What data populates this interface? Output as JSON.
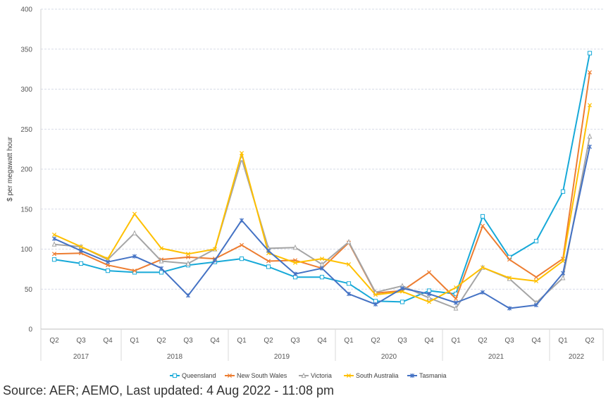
{
  "chart_data": {
    "type": "line",
    "ylabel": "$ per megawatt hour",
    "ylim": [
      0,
      400
    ],
    "yticks": [
      0,
      50,
      100,
      150,
      200,
      250,
      300,
      350,
      400
    ],
    "gridlines": true,
    "legend_position": "bottom",
    "categories": [
      "Q2",
      "Q3",
      "Q4",
      "Q1",
      "Q2",
      "Q3",
      "Q4",
      "Q1",
      "Q2",
      "Q3",
      "Q4",
      "Q1",
      "Q2",
      "Q3",
      "Q4",
      "Q1",
      "Q2",
      "Q3",
      "Q4",
      "Q1",
      "Q2"
    ],
    "year_groups": [
      {
        "label": "2017",
        "count": 3
      },
      {
        "label": "2018",
        "count": 4
      },
      {
        "label": "2019",
        "count": 4
      },
      {
        "label": "2020",
        "count": 4
      },
      {
        "label": "2021",
        "count": 4
      },
      {
        "label": "2022",
        "count": 2
      }
    ],
    "series": [
      {
        "name": "Queensland",
        "color": "#17a9d8",
        "marker": "square",
        "values": [
          87,
          82,
          73,
          71,
          71,
          80,
          84,
          88,
          78,
          65,
          65,
          57,
          35,
          34,
          48,
          44,
          141,
          90,
          110,
          172,
          345
        ]
      },
      {
        "name": "New South Wales",
        "color": "#ed7d31",
        "marker": "cross",
        "values": [
          94,
          95,
          80,
          73,
          87,
          90,
          88,
          105,
          85,
          86,
          76,
          108,
          45,
          48,
          71,
          38,
          129,
          87,
          65,
          88,
          321
        ]
      },
      {
        "name": "Victoria",
        "color": "#a5a5a5",
        "marker": "triangle",
        "values": [
          106,
          103,
          87,
          120,
          85,
          82,
          100,
          213,
          101,
          102,
          81,
          109,
          46,
          54,
          39,
          26,
          77,
          63,
          33,
          64,
          241
        ]
      },
      {
        "name": "South Australia",
        "color": "#ffc000",
        "marker": "cross",
        "values": [
          118,
          103,
          88,
          144,
          101,
          94,
          100,
          220,
          95,
          83,
          88,
          81,
          43,
          47,
          34,
          52,
          77,
          64,
          60,
          85,
          280
        ]
      },
      {
        "name": "Tasmania",
        "color": "#4472c4",
        "marker": "asterisk",
        "values": [
          113,
          98,
          84,
          91,
          76,
          42,
          86,
          136,
          98,
          69,
          76,
          44,
          31,
          51,
          44,
          33,
          46,
          26,
          30,
          70,
          228
        ]
      }
    ]
  },
  "footer": {
    "source": "Source: AER; AEMO, Last updated: 4 Aug 2022 - 11:08 pm"
  }
}
